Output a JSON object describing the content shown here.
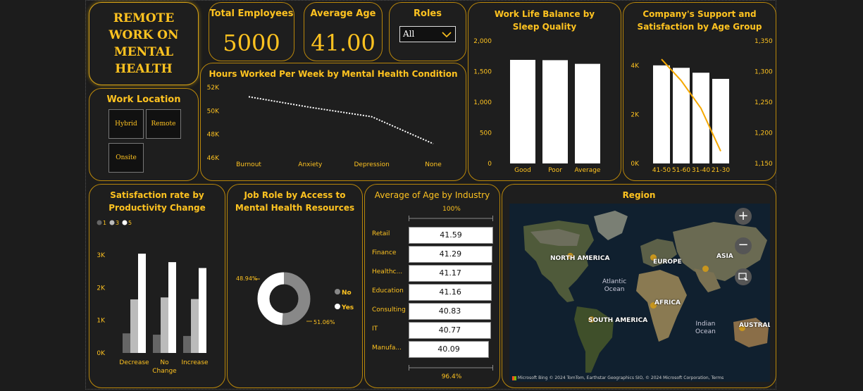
{
  "hero": {
    "lines": [
      "REMOTE",
      "WORK ON",
      "MENTAL",
      "HEALTH"
    ]
  },
  "kpi": {
    "total_employees": {
      "label": "Total Employees",
      "value": "5000"
    },
    "average_age": {
      "label": "Average Age",
      "value": "41.00"
    }
  },
  "roles": {
    "label": "Roles",
    "selected": "All"
  },
  "work_location": {
    "title": "Work Location",
    "options": [
      "Hybrid",
      "Remote",
      "Onsite"
    ]
  },
  "hours_chart": {
    "title": "Hours Worked Per Week by Mental Health Condition",
    "type": "line",
    "categories": [
      "Burnout",
      "Anxiety",
      "Depression",
      "None"
    ],
    "values": [
      51200,
      50300,
      49500,
      47200
    ],
    "ylim": [
      46000,
      52000
    ],
    "yticks": [
      "46K",
      "48K",
      "50K",
      "52K"
    ],
    "line_color": "#ffffff"
  },
  "sleep_chart": {
    "title": "Work Life Balance by Sleep Quality",
    "type": "bar",
    "categories": [
      "Good",
      "Poor",
      "Average"
    ],
    "values": [
      1690,
      1685,
      1625
    ],
    "ylim": [
      0,
      2000
    ],
    "yticks": [
      "0",
      "500",
      "1,000",
      "1,500",
      "2,000"
    ]
  },
  "support_chart": {
    "title": "Company's Support and Satisfaction by Age Group",
    "type": "bar+line",
    "categories": [
      "41-50",
      "51-60",
      "31-40",
      "21-30"
    ],
    "bar_values": [
      4000,
      3900,
      3700,
      3450
    ],
    "bar_ylim": [
      0,
      5000
    ],
    "bar_yticks": [
      "0K",
      "2K",
      "4K"
    ],
    "line_values": [
      1320,
      1285,
      1240,
      1170
    ],
    "line_ylim": [
      1150,
      1350
    ],
    "line_yticks": [
      "1,150",
      "1,200",
      "1,250",
      "1,300",
      "1,350"
    ],
    "line_color": "#f5a800"
  },
  "productivity_chart": {
    "title": "Satisfaction rate by Productivity Change",
    "type": "bar",
    "legend": [
      "1",
      "3",
      "5"
    ],
    "legend_colors": [
      "#666666",
      "#bbbbbb",
      "#ffffff"
    ],
    "categories": [
      "Decrease",
      "No Change",
      "Increase"
    ],
    "series": [
      {
        "name": "1",
        "values": [
          600,
          560,
          520
        ]
      },
      {
        "name": "3",
        "values": [
          1640,
          1700,
          1650
        ]
      },
      {
        "name": "5",
        "values": [
          3040,
          2780,
          2600
        ]
      }
    ],
    "ylim": [
      0,
      3300
    ],
    "yticks": [
      "0K",
      "1K",
      "2K",
      "3K"
    ]
  },
  "donut_chart": {
    "title": "Job Role by Access to Mental Health Resources",
    "type": "pie",
    "labels": [
      "No",
      "Yes"
    ],
    "values": [
      51.06,
      48.94
    ],
    "value_labels": [
      "51.06%",
      "48.94%"
    ],
    "colors": [
      "#888888",
      "#ffffff"
    ]
  },
  "industry_chart": {
    "title": "Average of Age by Industry",
    "type": "bar",
    "top_label": "100%",
    "bottom_label": "96.4%",
    "categories": [
      "Retail",
      "Finance",
      "Healthc...",
      "Education",
      "Consulting",
      "IT",
      "Manufa..."
    ],
    "values": [
      41.59,
      41.29,
      41.17,
      41.16,
      40.83,
      40.77,
      40.09
    ],
    "value_labels": [
      "41.59",
      "41.29",
      "41.17",
      "41.16",
      "40.83",
      "40.77",
      "40.09"
    ]
  },
  "region_map": {
    "title": "Region",
    "labels": [
      "NORTH AMERICA",
      "EUROPE",
      "ASIA",
      "AFRICA",
      "SOUTH AMERICA",
      "AUSTRALIA"
    ],
    "ocean_labels": [
      "Atlantic",
      "Ocean",
      "Indian",
      "Ocean"
    ],
    "attribution_brand": "Microsoft Bing",
    "attribution": "© 2024 TomTom, Earthstar Geographics SIO, © 2024 Microsoft Corporation, Terms",
    "zoom_in_glyph": "+",
    "zoom_out_glyph": "−"
  }
}
